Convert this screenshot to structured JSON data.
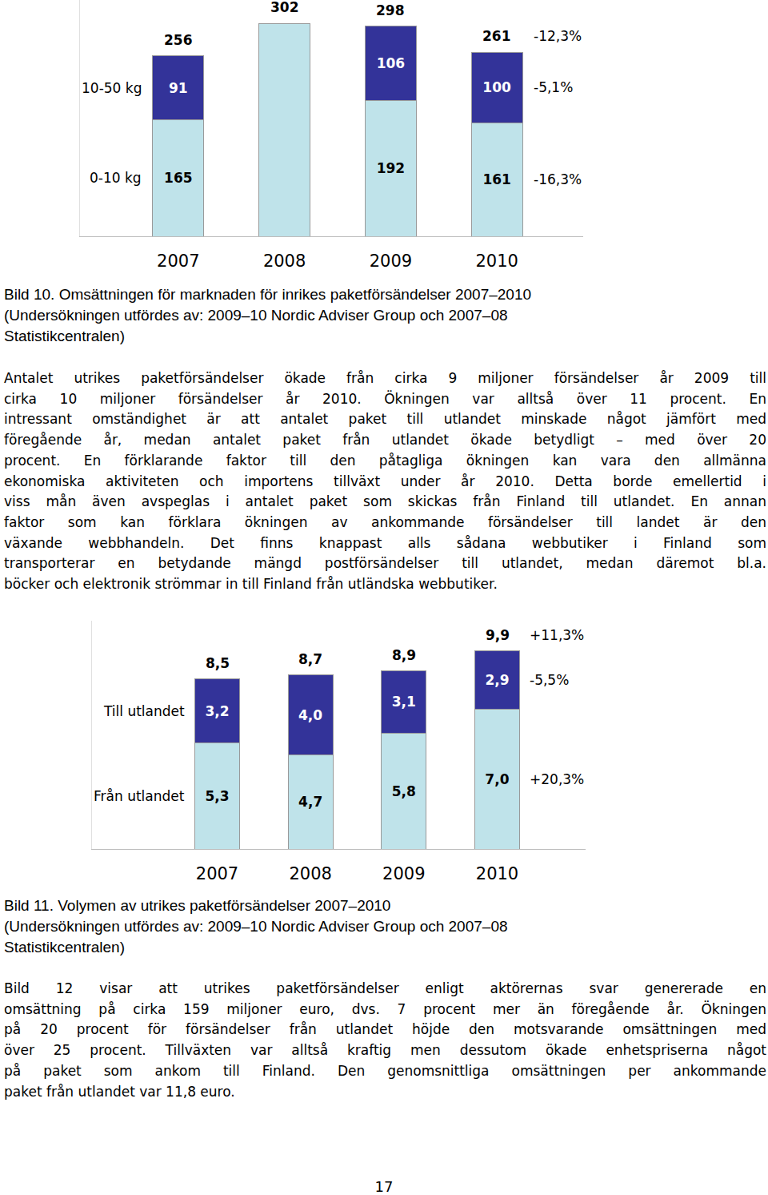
{
  "chart_data": [
    {
      "type": "bar",
      "stacked": true,
      "data_labels": true,
      "grid": false,
      "tick_labels": "x",
      "categories": [
        "2007",
        "2008",
        "2009",
        "2010"
      ],
      "ylim": [
        0,
        335
      ],
      "yticks": [
        0
      ],
      "series": [
        {
          "name": "0-10 kg",
          "color": "#bfe3ea",
          "values": [
            165,
            null,
            192,
            161
          ],
          "change_label": "-16,3%"
        },
        {
          "name": "10-50 kg",
          "color": "#333399",
          "values": [
            91,
            null,
            106,
            100
          ],
          "change_label": "-5,1%"
        }
      ],
      "totals": [
        256,
        302,
        298,
        261
      ],
      "total_change_label": "-12,3%"
    },
    {
      "type": "bar",
      "stacked": true,
      "data_labels": true,
      "grid": false,
      "tick_labels": "x",
      "categories": [
        "2007",
        "2008",
        "2009",
        "2010"
      ],
      "ylim": [
        0,
        11.4
      ],
      "yticks": [
        0
      ],
      "series": [
        {
          "name": "Från utlandet",
          "color": "#bfe3ea",
          "values": [
            5.3,
            4.7,
            5.8,
            7.0
          ],
          "value_labels": [
            "5,3",
            "4,7",
            "5,8",
            "7,0"
          ],
          "change_label": "+20,3%"
        },
        {
          "name": "Till utlandet",
          "color": "#333399",
          "values": [
            3.2,
            4.0,
            3.1,
            2.9
          ],
          "value_labels": [
            "3,2",
            "4,0",
            "3,1",
            "2,9"
          ],
          "change_label": "-5,5%"
        }
      ],
      "totals": [
        8.5,
        8.7,
        8.9,
        9.9
      ],
      "total_labels": [
        "8,5",
        "8,7",
        "8,9",
        "9,9"
      ],
      "total_change_label": "+11,3%"
    }
  ],
  "document": {
    "caption_10": [
      "Bild 10. Omsättningen för marknaden för inrikes paketförsändelser 2007–2010",
      "(Undersökningen utfördes av: 2009–10 Nordic Adviser Group och 2007–08",
      "Statistikcentralen)"
    ],
    "paragraph_1": [
      "Antalet utrikes paketförsändelser ökade från cirka 9 miljoner försändelser år 2009 till",
      "cirka 10 miljoner försändelser år 2010. Ökningen var alltså över 11 procent. En",
      "intressant omständighet är att antalet paket till utlandet minskade något jämfört med",
      "föregående år, medan antalet paket från utlandet ökade betydligt – med över 20",
      "procent. En förklarande faktor till den påtagliga ökningen kan vara den allmänna",
      "ekonomiska aktiviteten och importens tillväxt under år 2010. Detta borde emellertid i",
      "viss mån även avspeglas i antalet paket som skickas från Finland till utlandet. En annan",
      "faktor som kan förklara ökningen av ankommande försändelser till landet är den",
      "växande webbhandeln. Det finns knappast alls sådana webbutiker i Finland som",
      "transporterar en betydande mängd postförsändelser till utlandet, medan däremot bl.a.",
      "böcker och elektronik strömmar in till Finland från utländska webbutiker."
    ],
    "caption_11": [
      "Bild 11. Volymen av utrikes paketförsändelser 2007–2010",
      "(Undersökningen utfördes av: 2009–10 Nordic Adviser Group och 2007–08",
      "Statistikcentralen)"
    ],
    "paragraph_2": [
      "Bild 12 visar att utrikes paketförsändelser enligt aktörernas svar genererade en",
      "omsättning på cirka 159 miljoner euro, dvs. 7 procent mer än föregående år. Ökningen",
      "på 20 procent för försändelser från utlandet höjde den motsvarande omsättningen med",
      "över 25 procent. Tillväxten var alltså kraftig men dessutom ökade enhetspriserna något",
      "på paket som ankom till Finland. Den genomsnittliga omsättningen per ankommande",
      "paket från utlandet var 11,8 euro."
    ],
    "page_number": "17"
  }
}
